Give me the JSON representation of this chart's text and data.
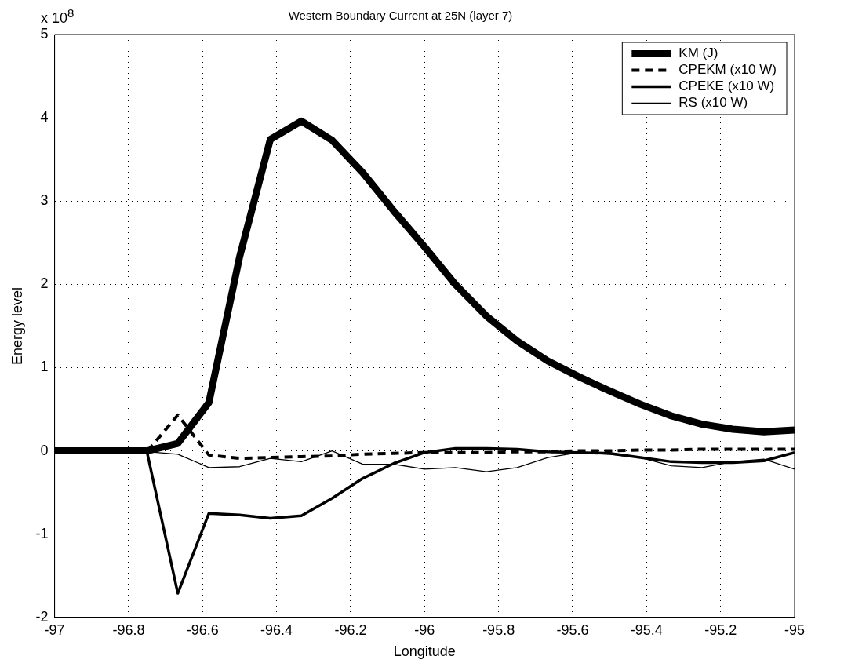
{
  "chart_data": {
    "type": "line",
    "title": "Western Boundary Current at 25N (layer 7)",
    "xlabel": "Longitude",
    "ylabel": "Energy level",
    "annotations": [
      "x 10$^{8}$"
    ],
    "x": [
      -97,
      -96.917,
      -96.833,
      -96.75,
      -96.667,
      -96.583,
      -96.5,
      -96.417,
      -96.333,
      -96.25,
      -96.167,
      -96.083,
      -96,
      -95.917,
      -95.833,
      -95.75,
      -95.667,
      -95.583,
      -95.5,
      -95.417,
      -95.333,
      -95.25,
      -95.167,
      -95.083,
      -95
    ],
    "series": [
      {
        "name": "KM (J)",
        "color": "#000000",
        "line_style": "solid",
        "values": [
          0,
          0,
          0,
          0,
          0.09,
          0.58,
          2.33,
          3.74,
          3.96,
          3.73,
          3.34,
          2.88,
          2.45,
          2.0,
          1.62,
          1.32,
          1.08,
          0.89,
          0.72,
          0.56,
          0.42,
          0.32,
          0.26,
          0.23,
          0.25
        ]
      },
      {
        "name": "CPEKM (x10 W)",
        "color": "#000000",
        "line_style": "dashed",
        "values": [
          0,
          0,
          0,
          -0.01,
          0.43,
          -0.05,
          -0.09,
          -0.08,
          -0.07,
          -0.06,
          -0.04,
          -0.03,
          -0.02,
          -0.02,
          -0.02,
          -0.01,
          -0.01,
          0,
          0,
          0.01,
          0.01,
          0.02,
          0.02,
          0.02,
          0.02
        ]
      },
      {
        "name": "CPEKE (x10 W)",
        "color": "#000000",
        "line_style": "solid",
        "values": [
          0,
          0,
          0,
          -0.02,
          -1.71,
          -0.75,
          -0.77,
          -0.81,
          -0.78,
          -0.57,
          -0.33,
          -0.15,
          -0.02,
          0.03,
          0.03,
          0.02,
          -0.01,
          -0.02,
          -0.03,
          -0.08,
          -0.13,
          -0.14,
          -0.14,
          -0.12,
          -0.02
        ]
      },
      {
        "name": "RS (x10 W)",
        "color": "#000000",
        "line_style": "solid",
        "values": [
          0,
          0,
          0,
          -0.01,
          -0.04,
          -0.2,
          -0.19,
          -0.09,
          -0.13,
          0,
          -0.16,
          -0.16,
          -0.22,
          -0.2,
          -0.25,
          -0.2,
          -0.08,
          -0.02,
          -0.04,
          -0.08,
          -0.18,
          -0.2,
          -0.13,
          -0.1,
          -0.22
        ]
      }
    ],
    "xlim": [
      -97,
      -95
    ],
    "xticks": [
      -97,
      -96.8,
      -96.6,
      -96.4,
      -96.2,
      -96,
      -95.8,
      -95.6,
      -95.4,
      -95.2,
      -95
    ],
    "ylim": [
      -2,
      5
    ],
    "yticks": [
      -2,
      -1,
      0,
      1,
      2,
      3,
      4,
      5
    ],
    "grid": true,
    "legend": "top right",
    "marker": "none"
  }
}
